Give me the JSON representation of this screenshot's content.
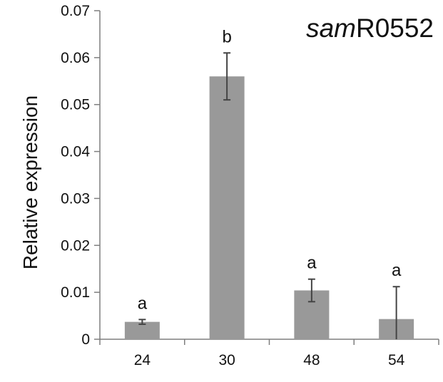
{
  "chart_data": {
    "type": "bar",
    "title_italic": "sam",
    "title_rest": "R0552",
    "xlabel": "",
    "ylabel": "Relative expression",
    "categories": [
      "24",
      "30",
      "48",
      "54"
    ],
    "values": [
      0.0037,
      0.056,
      0.0104,
      0.0043
    ],
    "errors": [
      0.0005,
      0.005,
      0.0024,
      0.0069
    ],
    "significance": [
      "a",
      "b",
      "a",
      "a"
    ],
    "ylim": [
      0,
      0.07
    ],
    "yticks": [
      "0",
      "0.01",
      "0.02",
      "0.03",
      "0.04",
      "0.05",
      "0.06",
      "0.07"
    ],
    "grid": false,
    "colors": {
      "bar": "#999999",
      "error_bar": "#444444",
      "axis": "#7f7f7f"
    }
  }
}
